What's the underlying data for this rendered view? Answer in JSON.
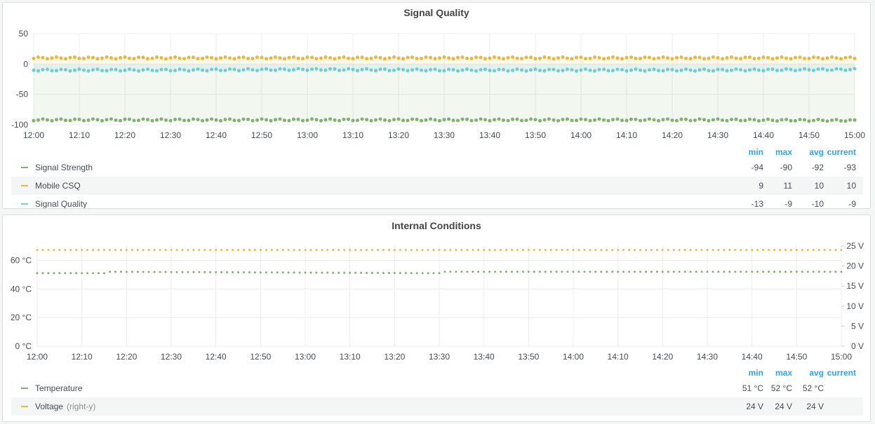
{
  "panels": [
    {
      "title": "Signal Quality",
      "legend_headers": [
        "min",
        "max",
        "avg",
        "current"
      ],
      "legend": [
        {
          "name": "Signal Strength",
          "axis_note": "",
          "color": "#7eb26d",
          "min": "-94",
          "max": "-90",
          "avg": "-92",
          "current": "-93"
        },
        {
          "name": "Mobile CSQ",
          "axis_note": "",
          "color": "#eab839",
          "min": "9",
          "max": "11",
          "avg": "10",
          "current": "10"
        },
        {
          "name": "Signal Quality",
          "axis_note": "",
          "color": "#6ed0e0",
          "min": "-13",
          "max": "-9",
          "avg": "-10",
          "current": "-9"
        }
      ]
    },
    {
      "title": "Internal Conditions",
      "legend_headers": [
        "min",
        "max",
        "avg",
        "current"
      ],
      "legend": [
        {
          "name": "Temperature",
          "axis_note": "",
          "color": "#7eb26d",
          "min": "51 °C",
          "max": "52 °C",
          "avg": "52 °C",
          "current": ""
        },
        {
          "name": "Voltage",
          "axis_note": "(right-y)",
          "color": "#eab839",
          "min": "24 V",
          "max": "24 V",
          "avg": "24 V",
          "current": ""
        }
      ]
    }
  ],
  "chart_data": [
    {
      "type": "scatter",
      "title": "Signal Quality",
      "x_ticks": [
        "12:00",
        "12:10",
        "12:20",
        "12:30",
        "12:40",
        "12:50",
        "13:00",
        "13:10",
        "13:20",
        "13:30",
        "13:40",
        "13:50",
        "14:00",
        "14:10",
        "14:20",
        "14:30",
        "14:40",
        "14:50",
        "15:00"
      ],
      "x_range": [
        "12:00",
        "15:00"
      ],
      "y_ticks": [
        "50",
        "0",
        "-50",
        "-100"
      ],
      "ylim": [
        -100,
        50
      ],
      "grid": true,
      "legend_position": "bottom",
      "series": [
        {
          "name": "Mobile CSQ",
          "color": "#eab839",
          "fill": true,
          "keypoints": [
            [
              "12:00",
              10
            ],
            [
              "12:30",
              10
            ],
            [
              "13:00",
              10
            ],
            [
              "13:30",
              10
            ],
            [
              "14:00",
              10
            ],
            [
              "14:30",
              10
            ],
            [
              "15:00",
              10
            ]
          ]
        },
        {
          "name": "Signal Quality",
          "color": "#6ed0e0",
          "fill": true,
          "keypoints": [
            [
              "12:00",
              -10
            ],
            [
              "12:30",
              -10
            ],
            [
              "13:00",
              -9
            ],
            [
              "13:30",
              -10
            ],
            [
              "14:00",
              -10
            ],
            [
              "14:30",
              -10
            ],
            [
              "15:00",
              -9
            ]
          ]
        },
        {
          "name": "Signal Strength",
          "color": "#7eb26d",
          "fill": true,
          "keypoints": [
            [
              "12:00",
              -92
            ],
            [
              "12:30",
              -92
            ],
            [
              "13:00",
              -92
            ],
            [
              "13:30",
              -92
            ],
            [
              "14:00",
              -92
            ],
            [
              "14:30",
              -92
            ],
            [
              "15:00",
              -93
            ]
          ]
        }
      ]
    },
    {
      "type": "scatter",
      "title": "Internal Conditions",
      "x_ticks": [
        "12:00",
        "12:10",
        "12:20",
        "12:30",
        "12:40",
        "12:50",
        "13:00",
        "13:10",
        "13:20",
        "13:30",
        "13:40",
        "13:50",
        "14:00",
        "14:10",
        "14:20",
        "14:30",
        "14:40",
        "14:50",
        "15:00"
      ],
      "x_range": [
        "12:00",
        "15:00"
      ],
      "y_left_ticks": [
        "60 °C",
        "40 °C",
        "20 °C",
        "0 °C"
      ],
      "y_left_range": [
        0,
        70
      ],
      "y_right_ticks": [
        "25 V",
        "20 V",
        "15 V",
        "10 V",
        "5 V",
        "0 V"
      ],
      "y_right_range": [
        0,
        25
      ],
      "grid": true,
      "legend_position": "bottom",
      "series": [
        {
          "name": "Temperature",
          "color": "#7eb26d",
          "axis": "left",
          "keypoints": [
            [
              "12:00",
              51
            ],
            [
              "12:15",
              51
            ],
            [
              "12:16",
              52
            ],
            [
              "13:30",
              51
            ],
            [
              "13:31",
              52
            ],
            [
              "15:00",
              52
            ]
          ]
        },
        {
          "name": "Voltage",
          "axis": "right",
          "color": "#eab839",
          "keypoints": [
            [
              "12:00",
              24
            ],
            [
              "15:00",
              24
            ]
          ]
        }
      ]
    }
  ]
}
